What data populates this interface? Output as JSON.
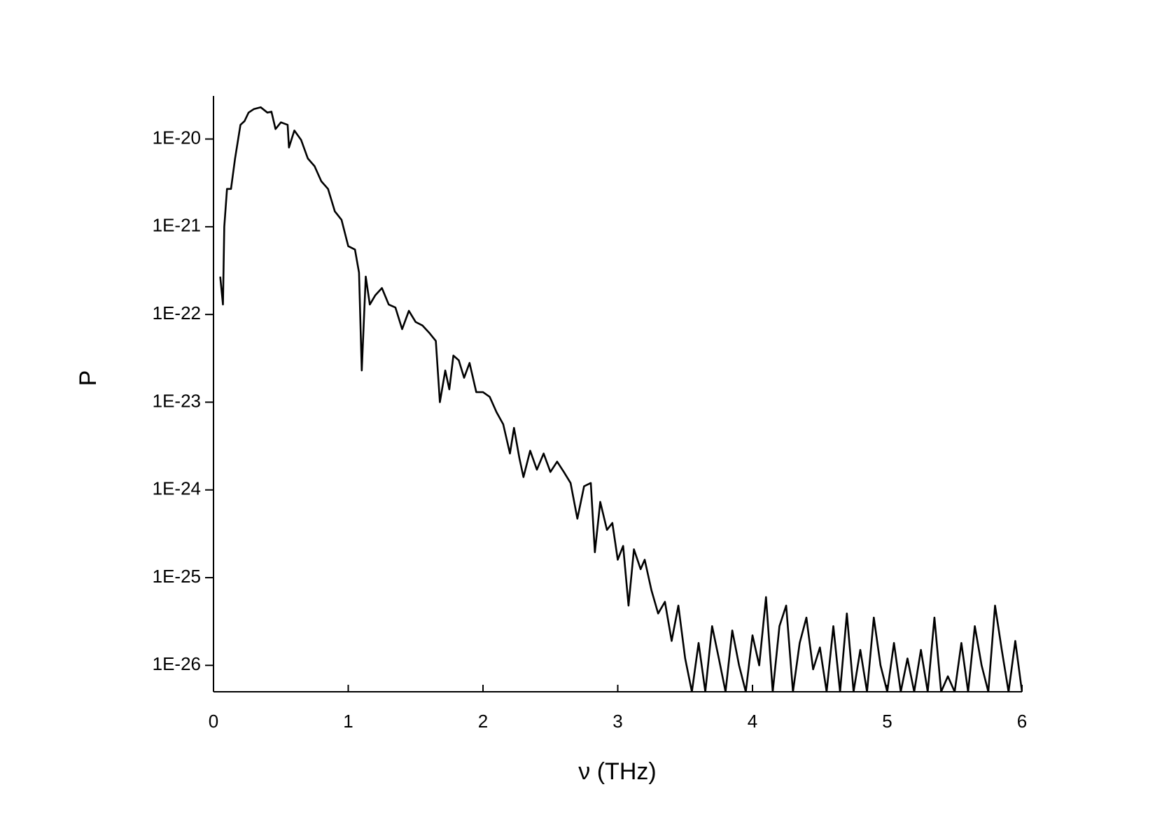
{
  "chart_data": {
    "type": "line",
    "xlabel": "ν (THz)",
    "ylabel": "P",
    "color": "#000000",
    "log_y": true,
    "xlim": [
      0,
      6
    ],
    "xticks": [
      0,
      1,
      2,
      3,
      4,
      5,
      6
    ],
    "ylim": [
      5e-27,
      3.1e-20
    ],
    "yticks": [
      {
        "value": 1e-26,
        "label": "1E-26"
      },
      {
        "value": 1e-25,
        "label": "1E-25"
      },
      {
        "value": 1e-24,
        "label": "1E-24"
      },
      {
        "value": 1e-23,
        "label": "1E-23"
      },
      {
        "value": 1e-22,
        "label": "1E-22"
      },
      {
        "value": 1e-21,
        "label": "1E-21"
      },
      {
        "value": 1e-20,
        "label": "1E-20"
      }
    ],
    "x": [
      0.05,
      0.07,
      0.08,
      0.1,
      0.13,
      0.16,
      0.2,
      0.23,
      0.26,
      0.3,
      0.35,
      0.4,
      0.43,
      0.46,
      0.5,
      0.55,
      0.56,
      0.6,
      0.65,
      0.7,
      0.75,
      0.8,
      0.85,
      0.9,
      0.95,
      1.0,
      1.05,
      1.08,
      1.1,
      1.13,
      1.16,
      1.2,
      1.25,
      1.3,
      1.35,
      1.4,
      1.45,
      1.5,
      1.55,
      1.6,
      1.65,
      1.68,
      1.72,
      1.75,
      1.78,
      1.82,
      1.86,
      1.9,
      1.95,
      2.0,
      2.05,
      2.1,
      2.15,
      2.2,
      2.23,
      2.27,
      2.3,
      2.35,
      2.4,
      2.45,
      2.5,
      2.55,
      2.6,
      2.65,
      2.7,
      2.75,
      2.8,
      2.83,
      2.87,
      2.92,
      2.96,
      3.0,
      3.04,
      3.08,
      3.12,
      3.17,
      3.2,
      3.25,
      3.3,
      3.35,
      3.4,
      3.45,
      3.5,
      3.55,
      3.6,
      3.65,
      3.7,
      3.75,
      3.8,
      3.85,
      3.9,
      3.95,
      4.0,
      4.05,
      4.1,
      4.15,
      4.2,
      4.25,
      4.3,
      4.35,
      4.4,
      4.45,
      4.5,
      4.55,
      4.6,
      4.65,
      4.7,
      4.75,
      4.8,
      4.85,
      4.9,
      4.95,
      5.0,
      5.05,
      5.1,
      5.15,
      5.2,
      5.25,
      5.3,
      5.35,
      5.4,
      5.45,
      5.5,
      5.55,
      5.6,
      5.65,
      5.7,
      5.75,
      5.8,
      5.85,
      5.9,
      5.95,
      6.0
    ],
    "values": [
      2.7e-22,
      1.3e-22,
      1e-21,
      2.7e-21,
      2.7e-21,
      6e-21,
      1.45e-20,
      1.6e-20,
      2e-20,
      2.2e-20,
      2.3e-20,
      2e-20,
      2.05e-20,
      1.3e-20,
      1.55e-20,
      1.45e-20,
      8e-21,
      1.25e-20,
      9.8e-21,
      6e-21,
      4.9e-21,
      3.3e-21,
      2.7e-21,
      1.5e-21,
      1.2e-21,
      6e-22,
      5.5e-22,
      3e-22,
      2.3e-23,
      2.7e-22,
      1.3e-22,
      1.65e-22,
      2e-22,
      1.3e-22,
      1.2e-22,
      6.8e-23,
      1.1e-22,
      8.2e-23,
      7.5e-23,
      6.2e-23,
      5e-23,
      1e-23,
      2.3e-23,
      1.4e-23,
      3.4e-23,
      3e-23,
      1.9e-23,
      2.8e-23,
      1.3e-23,
      1.3e-23,
      1.15e-23,
      7.7e-24,
      5.6e-24,
      2.6e-24,
      5.1e-24,
      2.3e-24,
      1.4e-24,
      2.8e-24,
      1.7e-24,
      2.6e-24,
      1.6e-24,
      2.1e-24,
      1.6e-24,
      1.2e-24,
      4.7e-25,
      1.1e-24,
      1.2e-24,
      1.95e-25,
      7.3e-25,
      3.5e-25,
      4.2e-25,
      1.6e-25,
      2.3e-25,
      4.8e-26,
      2.1e-25,
      1.25e-25,
      1.6e-25,
      7.2e-26,
      3.9e-26,
      5.3e-26,
      1.9e-26,
      4.8e-26,
      1.2e-26,
      5e-27,
      1.8e-26,
      5e-27,
      2.8e-26,
      1.2e-26,
      5e-27,
      2.5e-26,
      1e-26,
      5e-27,
      2.2e-26,
      1e-26,
      6e-26,
      5e-27,
      2.8e-26,
      4.8e-26,
      5e-27,
      1.8e-26,
      3.5e-26,
      9e-27,
      1.6e-26,
      5e-27,
      2.8e-26,
      5e-27,
      3.9e-26,
      5e-27,
      1.5e-26,
      5e-27,
      3.5e-26,
      1e-26,
      5e-27,
      1.8e-26,
      5e-27,
      1.2e-26,
      5e-27,
      1.5e-26,
      5e-27,
      3.5e-26,
      5e-27,
      7.5e-27,
      5e-27,
      1.8e-26,
      5e-27,
      2.8e-26,
      1e-26,
      5e-27,
      4.8e-26,
      1.5e-26,
      5e-27,
      1.9e-26,
      5e-27
    ]
  }
}
